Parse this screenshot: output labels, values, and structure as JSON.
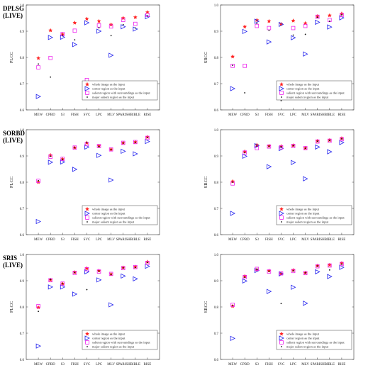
{
  "categories": [
    "MEW",
    "CPBD",
    "S3",
    "FISH",
    "SVC",
    "LPC",
    "MLV",
    "SPARISH",
    "BIBLE",
    "RISE"
  ],
  "colors": {
    "whole": "#ff2222",
    "center": "#2222ee",
    "salient": "#ee22ee",
    "major": "#111111"
  },
  "legend": {
    "whole": "whole image as the input",
    "center": "center region as the input",
    "salient": "salient region with surroundings as the input",
    "major": "major salient region as the input"
  },
  "rows": [
    {
      "title": "DPLSG",
      "subtitle": "(LIVE)"
    },
    {
      "title": "SORBD",
      "subtitle": "(LIVE)"
    },
    {
      "title": "SRIS",
      "subtitle": "(LIVE)"
    }
  ],
  "chart_data": [
    {
      "type": "scatter",
      "id": "dplsg-plcc",
      "ylabel": "PLCC",
      "ylim": [
        0.6,
        1.0
      ],
      "yticks": [
        "0.6",
        "0.7",
        "0.8",
        "0.9",
        "1.0"
      ],
      "categories": [
        "MEW",
        "CPBD",
        "S3",
        "FISH",
        "SVC",
        "LPC",
        "MLV",
        "SPARISH",
        "BIBLE",
        "RISE"
      ],
      "series": [
        {
          "name": "whole image as the input",
          "marker": "star",
          "values": [
            0.797,
            0.903,
            0.888,
            0.932,
            0.947,
            0.938,
            0.925,
            0.95,
            0.953,
            0.972
          ]
        },
        {
          "name": "center region as the input",
          "marker": "triangle",
          "values": [
            0.651,
            0.876,
            0.877,
            0.849,
            0.932,
            0.9,
            0.808,
            0.917,
            0.908,
            0.955
          ]
        },
        {
          "name": "salient region with surroundings as the input",
          "marker": "square",
          "values": [
            0.762,
            0.798,
            0.889,
            0.902,
            0.714,
            0.922,
            0.918,
            0.943,
            0.928,
            0.962
          ]
        },
        {
          "name": "major salient region as the input",
          "marker": "dot",
          "values": [
            0.775,
            0.725,
            0.885,
            0.867,
            0.678,
            0.913,
            0.883,
            0.925,
            0.912,
            0.958
          ]
        }
      ]
    },
    {
      "type": "scatter",
      "id": "dplsg-srcc",
      "ylabel": "SRCC",
      "ylim": [
        0.6,
        1.0
      ],
      "yticks": [
        "0.6",
        "0.7",
        "0.8",
        "0.9",
        "1.0"
      ],
      "categories": [
        "MEW",
        "CPBD",
        "S3",
        "FISH",
        "SVC",
        "LPC",
        "MLV",
        "SPARISH",
        "BIBLE",
        "RISE"
      ],
      "series": [
        {
          "name": "whole image as the input",
          "marker": "star",
          "values": [
            0.803,
            0.917,
            0.942,
            0.938,
            0.927,
            0.94,
            0.93,
            0.957,
            0.96,
            0.967
          ]
        },
        {
          "name": "center region as the input",
          "marker": "triangle",
          "values": [
            0.681,
            0.899,
            0.938,
            0.859,
            0.926,
            0.875,
            0.813,
            0.934,
            0.916,
            0.951
          ]
        },
        {
          "name": "salient region with surroundings as the input",
          "marker": "square",
          "values": [
            0.768,
            0.768,
            0.92,
            0.912,
            0.69,
            0.912,
            0.92,
            0.955,
            0.943,
            0.962
          ]
        },
        {
          "name": "major salient region as the input",
          "marker": "dot",
          "values": [
            0.77,
            0.665,
            0.93,
            0.903,
            0.635,
            0.885,
            0.888,
            0.953,
            0.938,
            0.962
          ]
        }
      ]
    },
    {
      "type": "scatter",
      "id": "sorbd-plcc",
      "ylabel": "PLCC",
      "ylim": [
        0.6,
        1.0
      ],
      "yticks": [
        "0.6",
        "0.7",
        "0.8",
        "0.9",
        "1.0"
      ],
      "categories": [
        "MEW",
        "CPBD",
        "S3",
        "FISH",
        "SVC",
        "LPC",
        "MLV",
        "SPARISH",
        "BIBLE",
        "RISE"
      ],
      "series": [
        {
          "name": "whole image as the input",
          "marker": "star",
          "values": [
            0.8,
            0.903,
            0.888,
            0.932,
            0.95,
            0.938,
            0.925,
            0.95,
            0.953,
            0.972
          ]
        },
        {
          "name": "center region as the input",
          "marker": "triangle",
          "values": [
            0.65,
            0.876,
            0.877,
            0.849,
            0.934,
            0.902,
            0.808,
            0.918,
            0.908,
            0.955
          ]
        },
        {
          "name": "salient region with surroundings as the input",
          "marker": "square",
          "values": [
            0.805,
            0.897,
            0.889,
            0.932,
            0.945,
            0.938,
            0.925,
            0.95,
            0.953,
            0.969
          ]
        },
        {
          "name": "major salient region as the input",
          "marker": "dot",
          "values": [
            0.806,
            0.899,
            0.887,
            0.931,
            0.951,
            0.936,
            0.924,
            0.949,
            0.952,
            0.97
          ]
        }
      ]
    },
    {
      "type": "scatter",
      "id": "sorbd-srcc",
      "ylabel": "SRCC",
      "ylim": [
        0.6,
        1.0
      ],
      "yticks": [
        "0.6",
        "0.7",
        "0.8",
        "0.9",
        "1.0"
      ],
      "categories": [
        "MEW",
        "CPBD",
        "S3",
        "FISH",
        "SVC",
        "LPC",
        "MLV",
        "SPARISH",
        "BIBLE",
        "RISE"
      ],
      "series": [
        {
          "name": "whole image as the input",
          "marker": "star",
          "values": [
            0.803,
            0.917,
            0.942,
            0.938,
            0.937,
            0.94,
            0.93,
            0.957,
            0.96,
            0.967
          ]
        },
        {
          "name": "center region as the input",
          "marker": "triangle",
          "values": [
            0.681,
            0.899,
            0.939,
            0.859,
            0.928,
            0.875,
            0.813,
            0.934,
            0.916,
            0.951
          ]
        },
        {
          "name": "salient region with surroundings as the input",
          "marker": "square",
          "values": [
            0.795,
            0.913,
            0.93,
            0.936,
            0.933,
            0.938,
            0.93,
            0.955,
            0.958,
            0.964
          ]
        },
        {
          "name": "major salient region as the input",
          "marker": "dot",
          "values": [
            0.8,
            0.912,
            0.937,
            0.937,
            0.935,
            0.939,
            0.929,
            0.956,
            0.959,
            0.965
          ]
        }
      ]
    },
    {
      "type": "scatter",
      "id": "sris-plcc",
      "ylabel": "PLCC",
      "ylim": [
        0.6,
        1.0
      ],
      "yticks": [
        "0.6",
        "0.7",
        "0.8",
        "0.9",
        "1.0"
      ],
      "categories": [
        "MEW",
        "CPBD",
        "S3",
        "FISH",
        "SVC",
        "LPC",
        "MLV",
        "SPARISH",
        "BIBLE",
        "RISE"
      ],
      "series": [
        {
          "name": "whole image as the input",
          "marker": "star",
          "values": [
            0.798,
            0.903,
            0.889,
            0.932,
            0.947,
            0.938,
            0.925,
            0.95,
            0.953,
            0.972
          ]
        },
        {
          "name": "center region as the input",
          "marker": "triangle",
          "values": [
            0.651,
            0.876,
            0.876,
            0.849,
            0.934,
            0.903,
            0.808,
            0.918,
            0.907,
            0.955
          ]
        },
        {
          "name": "salient region with surroundings as the input",
          "marker": "square",
          "values": [
            0.803,
            0.902,
            0.889,
            0.93,
            0.944,
            0.935,
            0.926,
            0.948,
            0.952,
            0.968
          ]
        },
        {
          "name": "major salient region as the input",
          "marker": "dot",
          "values": [
            0.783,
            0.905,
            0.888,
            0.931,
            0.866,
            0.937,
            0.924,
            0.949,
            0.95,
            0.969
          ]
        }
      ]
    },
    {
      "type": "scatter",
      "id": "sris-srcc",
      "ylabel": "SRCC",
      "ylim": [
        0.6,
        1.0
      ],
      "yticks": [
        "0.6",
        "0.7",
        "0.8",
        "0.9",
        "1.0"
      ],
      "categories": [
        "MEW",
        "CPBD",
        "S3",
        "FISH",
        "SVC",
        "LPC",
        "MLV",
        "SPARISH",
        "BIBLE",
        "RISE"
      ],
      "series": [
        {
          "name": "whole image as the input",
          "marker": "star",
          "values": [
            0.803,
            0.917,
            0.942,
            0.938,
            0.927,
            0.94,
            0.93,
            0.957,
            0.96,
            0.967
          ]
        },
        {
          "name": "center region as the input",
          "marker": "triangle",
          "values": [
            0.68,
            0.899,
            0.939,
            0.859,
            0.926,
            0.875,
            0.814,
            0.934,
            0.916,
            0.951
          ]
        },
        {
          "name": "salient region with surroundings as the input",
          "marker": "square",
          "values": [
            0.808,
            0.914,
            0.945,
            0.935,
            0.928,
            0.937,
            0.929,
            0.955,
            0.958,
            0.964
          ]
        },
        {
          "name": "major salient region as the input",
          "marker": "dot",
          "values": [
            0.806,
            0.913,
            0.944,
            0.936,
            0.813,
            0.938,
            0.93,
            0.956,
            0.941,
            0.963
          ]
        }
      ]
    }
  ]
}
